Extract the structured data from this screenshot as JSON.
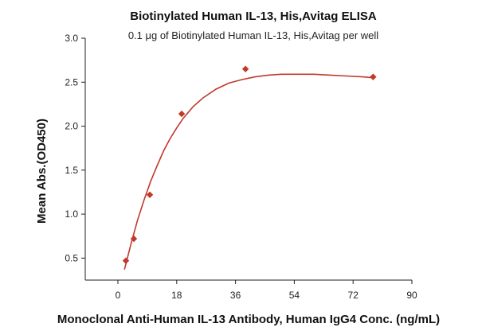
{
  "chart_data": {
    "type": "scatter",
    "title": "Biotinylated Human IL-13, His,Avitag ELISA",
    "subtitle": "0.1 μg of Biotinylated Human IL-13, His,Avitag per well",
    "xlabel": "Monoclonal Anti-Human IL-13 Antibody, Human IgG4 Conc. (ng/mL)",
    "ylabel": "Mean Abs.(OD450)",
    "xlim": [
      -10,
      90
    ],
    "ylim": [
      0.25,
      3.0
    ],
    "xticks": [
      0,
      18,
      36,
      54,
      72,
      90
    ],
    "yticks": [
      0.5,
      1.0,
      1.5,
      2.0,
      2.5,
      3.0
    ],
    "xtick_labels": [
      "0",
      "18",
      "36",
      "54",
      "72",
      "90"
    ],
    "ytick_labels": [
      "0.5",
      "1.0",
      "1.5",
      "2.0",
      "2.5",
      "3.0"
    ],
    "grid": false,
    "series": [
      {
        "marker": "diamond",
        "color": "#c0392b",
        "x": [
          2.44,
          4.88,
          9.77,
          19.53,
          39.06,
          78.13
        ],
        "y": [
          0.47,
          0.72,
          1.22,
          2.14,
          2.65,
          2.56
        ]
      }
    ],
    "fit_curve": {
      "color": "#c0392b",
      "x": [
        2,
        4,
        6,
        8,
        10,
        12,
        14,
        16,
        18,
        20,
        23,
        26,
        30,
        34,
        38,
        42,
        46,
        50,
        55,
        60,
        65,
        70,
        75,
        78
      ],
      "y": [
        0.37,
        0.66,
        0.93,
        1.16,
        1.37,
        1.55,
        1.72,
        1.86,
        1.98,
        2.09,
        2.22,
        2.32,
        2.42,
        2.49,
        2.53,
        2.56,
        2.58,
        2.59,
        2.59,
        2.59,
        2.58,
        2.57,
        2.56,
        2.55
      ]
    }
  }
}
